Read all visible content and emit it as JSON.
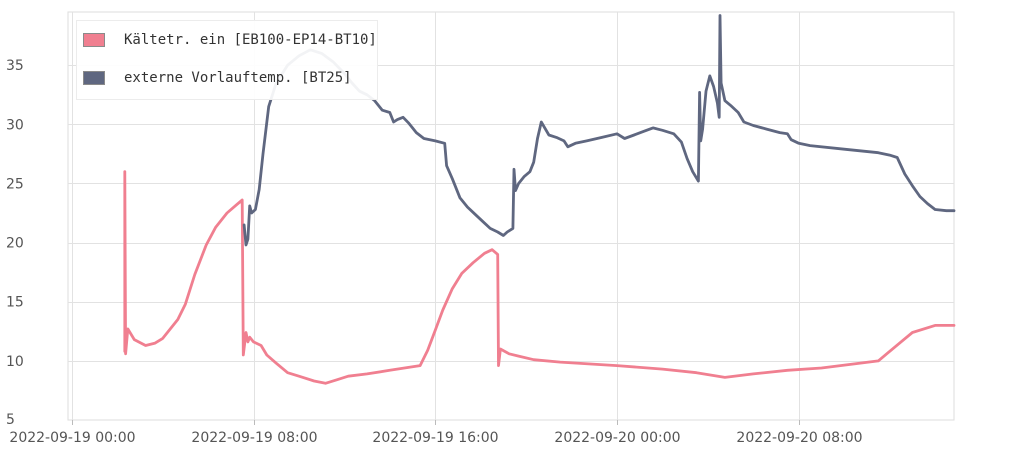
{
  "chart_data": {
    "type": "line",
    "title": "",
    "xlabel": "",
    "ylabel": "",
    "ylim": [
      5,
      39.5
    ],
    "xlim": [
      "2022-09-18 23:50",
      "2022-09-20 14:50"
    ],
    "grid": true,
    "legend_position": "top-left",
    "y_ticks": [
      5,
      10,
      15,
      20,
      25,
      30,
      35
    ],
    "x_ticks": [
      {
        "value": "2022-09-19 00:00",
        "label": "2022-09-19 00:00"
      },
      {
        "value": "2022-09-19 08:00",
        "label": "2022-09-19 08:00"
      },
      {
        "value": "2022-09-19 16:00",
        "label": "2022-09-19 16:00"
      },
      {
        "value": "2022-09-20 00:00",
        "label": "2022-09-20 00:00"
      },
      {
        "value": "2022-09-20 08:00",
        "label": "2022-09-20 08:00"
      }
    ],
    "series": [
      {
        "name": "Kältetr. ein [EB100-EP14-BT10]",
        "color": "#f07f90",
        "points": [
          [
            "2022-09-19 02:20",
            10.8
          ],
          [
            "2022-09-19 02:20",
            26.0
          ],
          [
            "2022-09-19 02:22",
            10.6
          ],
          [
            "2022-09-19 02:28",
            12.7
          ],
          [
            "2022-09-19 02:45",
            11.8
          ],
          [
            "2022-09-19 03:15",
            11.3
          ],
          [
            "2022-09-19 03:40",
            11.5
          ],
          [
            "2022-09-19 04:00",
            11.9
          ],
          [
            "2022-09-19 04:40",
            13.5
          ],
          [
            "2022-09-19 05:00",
            14.8
          ],
          [
            "2022-09-19 05:25",
            17.3
          ],
          [
            "2022-09-19 05:55",
            19.8
          ],
          [
            "2022-09-19 06:20",
            21.3
          ],
          [
            "2022-09-19 06:50",
            22.5
          ],
          [
            "2022-09-19 07:15",
            23.2
          ],
          [
            "2022-09-19 07:30",
            23.6
          ],
          [
            "2022-09-19 07:33",
            10.5
          ],
          [
            "2022-09-19 07:40",
            12.4
          ],
          [
            "2022-09-19 07:45",
            11.6
          ],
          [
            "2022-09-19 07:50",
            12.0
          ],
          [
            "2022-09-19 08:00",
            11.6
          ],
          [
            "2022-09-19 08:20",
            11.3
          ],
          [
            "2022-09-19 08:35",
            10.5
          ],
          [
            "2022-09-19 09:00",
            9.8
          ],
          [
            "2022-09-19 09:30",
            9.0
          ],
          [
            "2022-09-19 10:00",
            8.7
          ],
          [
            "2022-09-19 10:40",
            8.3
          ],
          [
            "2022-09-19 11:10",
            8.1
          ],
          [
            "2022-09-19 11:40",
            8.4
          ],
          [
            "2022-09-19 12:10",
            8.7
          ],
          [
            "2022-09-19 13:00",
            8.9
          ],
          [
            "2022-09-19 14:00",
            9.2
          ],
          [
            "2022-09-19 15:00",
            9.5
          ],
          [
            "2022-09-19 15:20",
            9.6
          ],
          [
            "2022-09-19 15:40",
            10.9
          ],
          [
            "2022-09-19 16:00",
            12.6
          ],
          [
            "2022-09-19 16:20",
            14.3
          ],
          [
            "2022-09-19 16:45",
            16.1
          ],
          [
            "2022-09-19 17:10",
            17.4
          ],
          [
            "2022-09-19 17:40",
            18.3
          ],
          [
            "2022-09-19 18:10",
            19.1
          ],
          [
            "2022-09-19 18:30",
            19.4
          ],
          [
            "2022-09-19 18:45",
            19.0
          ],
          [
            "2022-09-19 18:47",
            9.6
          ],
          [
            "2022-09-19 18:52",
            11.0
          ],
          [
            "2022-09-19 19:15",
            10.6
          ],
          [
            "2022-09-19 19:40",
            10.4
          ],
          [
            "2022-09-19 20:20",
            10.1
          ],
          [
            "2022-09-19 21:30",
            9.9
          ],
          [
            "2022-09-20 00:00",
            9.6
          ],
          [
            "2022-09-20 02:00",
            9.3
          ],
          [
            "2022-09-20 03:30",
            9.0
          ],
          [
            "2022-09-20 04:45",
            8.6
          ],
          [
            "2022-09-20 06:00",
            8.9
          ],
          [
            "2022-09-20 07:30",
            9.2
          ],
          [
            "2022-09-20 09:00",
            9.4
          ],
          [
            "2022-09-20 11:30",
            10.0
          ],
          [
            "2022-09-20 12:30",
            11.6
          ],
          [
            "2022-09-20 13:00",
            12.4
          ],
          [
            "2022-09-20 14:00",
            13.0
          ],
          [
            "2022-09-20 14:50",
            13.0
          ]
        ]
      },
      {
        "name": "externe Vorlauftemp. [BT25]",
        "color": "#5f6780",
        "points": [
          [
            "2022-09-19 07:35",
            21.5
          ],
          [
            "2022-09-19 07:40",
            19.8
          ],
          [
            "2022-09-19 07:45",
            20.3
          ],
          [
            "2022-09-19 07:50",
            23.1
          ],
          [
            "2022-09-19 07:55",
            22.5
          ],
          [
            "2022-09-19 08:05",
            22.8
          ],
          [
            "2022-09-19 08:15",
            24.5
          ],
          [
            "2022-09-19 08:25",
            27.5
          ],
          [
            "2022-09-19 08:40",
            31.5
          ],
          [
            "2022-09-19 09:00",
            33.5
          ],
          [
            "2022-09-19 09:30",
            35.0
          ],
          [
            "2022-09-19 10:00",
            35.8
          ],
          [
            "2022-09-19 10:30",
            36.3
          ],
          [
            "2022-09-19 11:00",
            36.0
          ],
          [
            "2022-09-19 11:30",
            35.3
          ],
          [
            "2022-09-19 12:00",
            34.3
          ],
          [
            "2022-09-19 12:20",
            33.5
          ],
          [
            "2022-09-19 12:40",
            32.8
          ],
          [
            "2022-09-19 13:00",
            32.5
          ],
          [
            "2022-09-19 13:20",
            32.0
          ],
          [
            "2022-09-19 13:40",
            31.2
          ],
          [
            "2022-09-19 14:00",
            31.0
          ],
          [
            "2022-09-19 14:10",
            30.2
          ],
          [
            "2022-09-19 14:20",
            30.4
          ],
          [
            "2022-09-19 14:35",
            30.6
          ],
          [
            "2022-09-19 14:50",
            30.1
          ],
          [
            "2022-09-19 15:10",
            29.3
          ],
          [
            "2022-09-19 15:30",
            28.8
          ],
          [
            "2022-09-19 16:00",
            28.6
          ],
          [
            "2022-09-19 16:25",
            28.4
          ],
          [
            "2022-09-19 16:30",
            26.5
          ],
          [
            "2022-09-19 16:45",
            25.4
          ],
          [
            "2022-09-19 17:05",
            23.8
          ],
          [
            "2022-09-19 17:25",
            23.0
          ],
          [
            "2022-09-19 17:45",
            22.4
          ],
          [
            "2022-09-19 18:05",
            21.8
          ],
          [
            "2022-09-19 18:25",
            21.2
          ],
          [
            "2022-09-19 18:45",
            20.9
          ],
          [
            "2022-09-19 19:00",
            20.6
          ],
          [
            "2022-09-19 19:10",
            20.9
          ],
          [
            "2022-09-19 19:25",
            21.2
          ],
          [
            "2022-09-19 19:28",
            26.2
          ],
          [
            "2022-09-19 19:32",
            24.4
          ],
          [
            "2022-09-19 19:40",
            25.0
          ],
          [
            "2022-09-19 19:55",
            25.6
          ],
          [
            "2022-09-19 20:10",
            26.0
          ],
          [
            "2022-09-19 20:20",
            26.8
          ],
          [
            "2022-09-19 20:30",
            28.8
          ],
          [
            "2022-09-19 20:40",
            30.2
          ],
          [
            "2022-09-19 21:00",
            29.1
          ],
          [
            "2022-09-19 21:20",
            28.9
          ],
          [
            "2022-09-19 21:40",
            28.6
          ],
          [
            "2022-09-19 21:50",
            28.1
          ],
          [
            "2022-09-19 22:10",
            28.4
          ],
          [
            "2022-09-19 22:40",
            28.6
          ],
          [
            "2022-09-19 23:20",
            28.9
          ],
          [
            "2022-09-20 00:00",
            29.2
          ],
          [
            "2022-09-20 00:20",
            28.8
          ],
          [
            "2022-09-20 00:45",
            29.1
          ],
          [
            "2022-09-20 01:10",
            29.4
          ],
          [
            "2022-09-20 01:35",
            29.7
          ],
          [
            "2022-09-20 02:00",
            29.5
          ],
          [
            "2022-09-20 02:30",
            29.2
          ],
          [
            "2022-09-20 02:50",
            28.5
          ],
          [
            "2022-09-20 03:05",
            27.1
          ],
          [
            "2022-09-20 03:20",
            26.0
          ],
          [
            "2022-09-20 03:35",
            25.2
          ],
          [
            "2022-09-20 03:38",
            32.7
          ],
          [
            "2022-09-20 03:41",
            28.6
          ],
          [
            "2022-09-20 03:46",
            29.6
          ],
          [
            "2022-09-20 03:55",
            32.8
          ],
          [
            "2022-09-20 04:05",
            34.1
          ],
          [
            "2022-09-20 04:15",
            33.2
          ],
          [
            "2022-09-20 04:25",
            31.8
          ],
          [
            "2022-09-20 04:30",
            30.6
          ],
          [
            "2022-09-20 04:32",
            39.2
          ],
          [
            "2022-09-20 04:35",
            33.5
          ],
          [
            "2022-09-20 04:45",
            32.0
          ],
          [
            "2022-09-20 05:00",
            31.6
          ],
          [
            "2022-09-20 05:20",
            31.0
          ],
          [
            "2022-09-20 05:35",
            30.2
          ],
          [
            "2022-09-20 06:00",
            29.9
          ],
          [
            "2022-09-20 06:35",
            29.6
          ],
          [
            "2022-09-20 07:10",
            29.3
          ],
          [
            "2022-09-20 07:30",
            29.2
          ],
          [
            "2022-09-20 07:40",
            28.7
          ],
          [
            "2022-09-20 08:00",
            28.4
          ],
          [
            "2022-09-20 08:30",
            28.2
          ],
          [
            "2022-09-20 10:00",
            27.9
          ],
          [
            "2022-09-20 11:30",
            27.6
          ],
          [
            "2022-09-20 12:00",
            27.4
          ],
          [
            "2022-09-20 12:20",
            27.2
          ],
          [
            "2022-09-20 12:40",
            25.8
          ],
          [
            "2022-09-20 13:00",
            24.8
          ],
          [
            "2022-09-20 13:20",
            23.9
          ],
          [
            "2022-09-20 13:40",
            23.3
          ],
          [
            "2022-09-20 14:00",
            22.8
          ],
          [
            "2022-09-20 14:30",
            22.7
          ],
          [
            "2022-09-20 14:50",
            22.7
          ]
        ]
      }
    ]
  }
}
